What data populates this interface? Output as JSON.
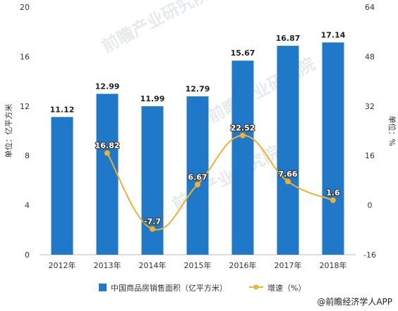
{
  "chart_data": {
    "type": "bar",
    "categories": [
      "2012年",
      "2013年",
      "2014年",
      "2015年",
      "2016年",
      "2017年",
      "2018年"
    ],
    "series": [
      {
        "name": "中国商品房销售面积（亿平方米）",
        "type": "bar",
        "axis": "left",
        "color": "#1f78c8",
        "values": [
          11.12,
          12.99,
          11.99,
          12.79,
          15.67,
          16.87,
          17.14
        ],
        "labels": [
          "11.12",
          "12.99",
          "11.99",
          "12.79",
          "15.67",
          "16.87",
          "17.14"
        ]
      },
      {
        "name": "增速（%）",
        "type": "line",
        "axis": "right",
        "color": "#f0b030",
        "values": [
          null,
          16.82,
          -7.7,
          6.67,
          22.52,
          7.66,
          1.6
        ],
        "labels": [
          "",
          "16.82",
          "-7.7",
          "6.67",
          "22.52",
          "7.66",
          "1.6"
        ]
      }
    ],
    "ylabel": "单位：亿平方米",
    "y2label": "单位：%",
    "ylim": [
      0,
      20
    ],
    "y2lim": [
      -16,
      64
    ],
    "yticks": [
      "0",
      "4",
      "8",
      "12",
      "16",
      "20"
    ],
    "y2ticks": [
      "-16",
      "0",
      "16",
      "32",
      "48",
      "64"
    ],
    "grid": false,
    "legend": "bottom-center"
  },
  "watermark": "前瞻产业研究院",
  "credit": "@前瞻经济学人APP"
}
